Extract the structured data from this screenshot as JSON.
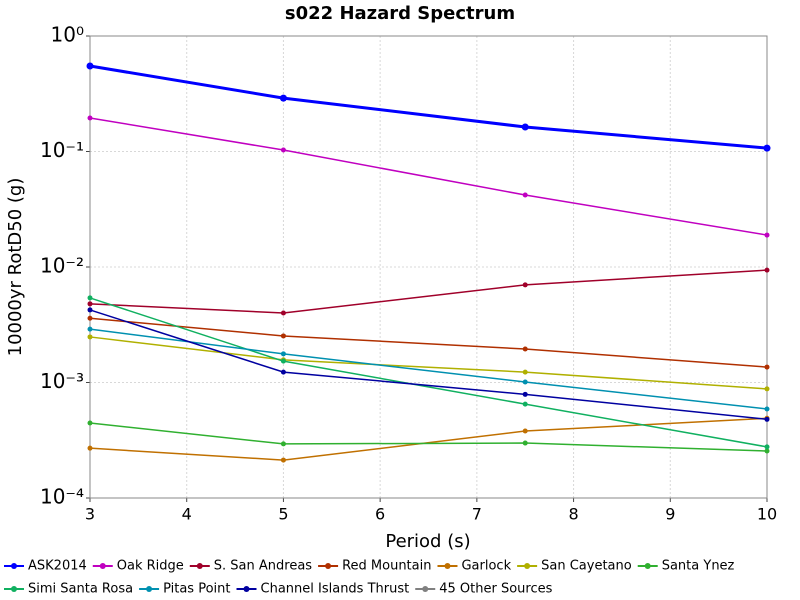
{
  "chart_data": {
    "type": "line",
    "title": "s022 Hazard Spectrum",
    "x_label": "Period (s)",
    "y_label": "10000yr RotD50 (g)",
    "x": [
      3,
      5,
      7.5,
      10
    ],
    "xlim": [
      3,
      10
    ],
    "xticks": [
      3,
      4,
      5,
      6,
      7,
      8,
      9,
      10
    ],
    "ylim": [
      0.0001,
      1
    ],
    "y_scale": "log",
    "yticks": [
      {
        "value": 1,
        "label": "10⁰"
      },
      {
        "value": 0.1,
        "label": "10⁻¹"
      },
      {
        "value": 0.01,
        "label": "10⁻²"
      },
      {
        "value": 0.001,
        "label": "10⁻³"
      },
      {
        "value": 0.0001,
        "label": "10⁻⁴"
      }
    ],
    "grid": true,
    "legend": "bottom",
    "series": [
      {
        "name": "ASK2014",
        "color": "#0000ff",
        "line_width": 3,
        "values": [
          0.55,
          0.29,
          0.163,
          0.107
        ]
      },
      {
        "name": "Oak Ridge",
        "color": "#c000c0",
        "values": [
          0.195,
          0.103,
          0.042,
          0.0189
        ]
      },
      {
        "name": "S. San Andreas",
        "color": "#a0002a",
        "values": [
          0.0048,
          0.004,
          0.007,
          0.0094
        ]
      },
      {
        "name": "Red Mountain",
        "color": "#b03000",
        "values": [
          0.0036,
          0.00253,
          0.00195,
          0.00136
        ]
      },
      {
        "name": "Garlock",
        "color": "#c07000",
        "values": [
          0.00027,
          0.000213,
          0.00038,
          0.00049
        ]
      },
      {
        "name": "San Cayetano",
        "color": "#b0b000",
        "values": [
          0.00248,
          0.00157,
          0.00123,
          0.00088
        ]
      },
      {
        "name": "Santa Ynez",
        "color": "#30b030",
        "values": [
          0.000446,
          0.000294,
          0.000299,
          0.000255
        ]
      },
      {
        "name": "Simi Santa Rosa",
        "color": "#10b060",
        "values": [
          0.0054,
          0.00153,
          0.00065,
          0.000277
        ]
      },
      {
        "name": "Pitas Point",
        "color": "#0090b0",
        "values": [
          0.0029,
          0.00177,
          0.00101,
          0.00059
        ]
      },
      {
        "name": "Channel Islands Thrust",
        "color": "#0000a0",
        "values": [
          0.00425,
          0.00123,
          0.00079,
          0.00048
        ]
      },
      {
        "name": "45 Other Sources",
        "color": "#808080",
        "values": [
          null,
          null,
          null,
          null
        ]
      }
    ]
  }
}
